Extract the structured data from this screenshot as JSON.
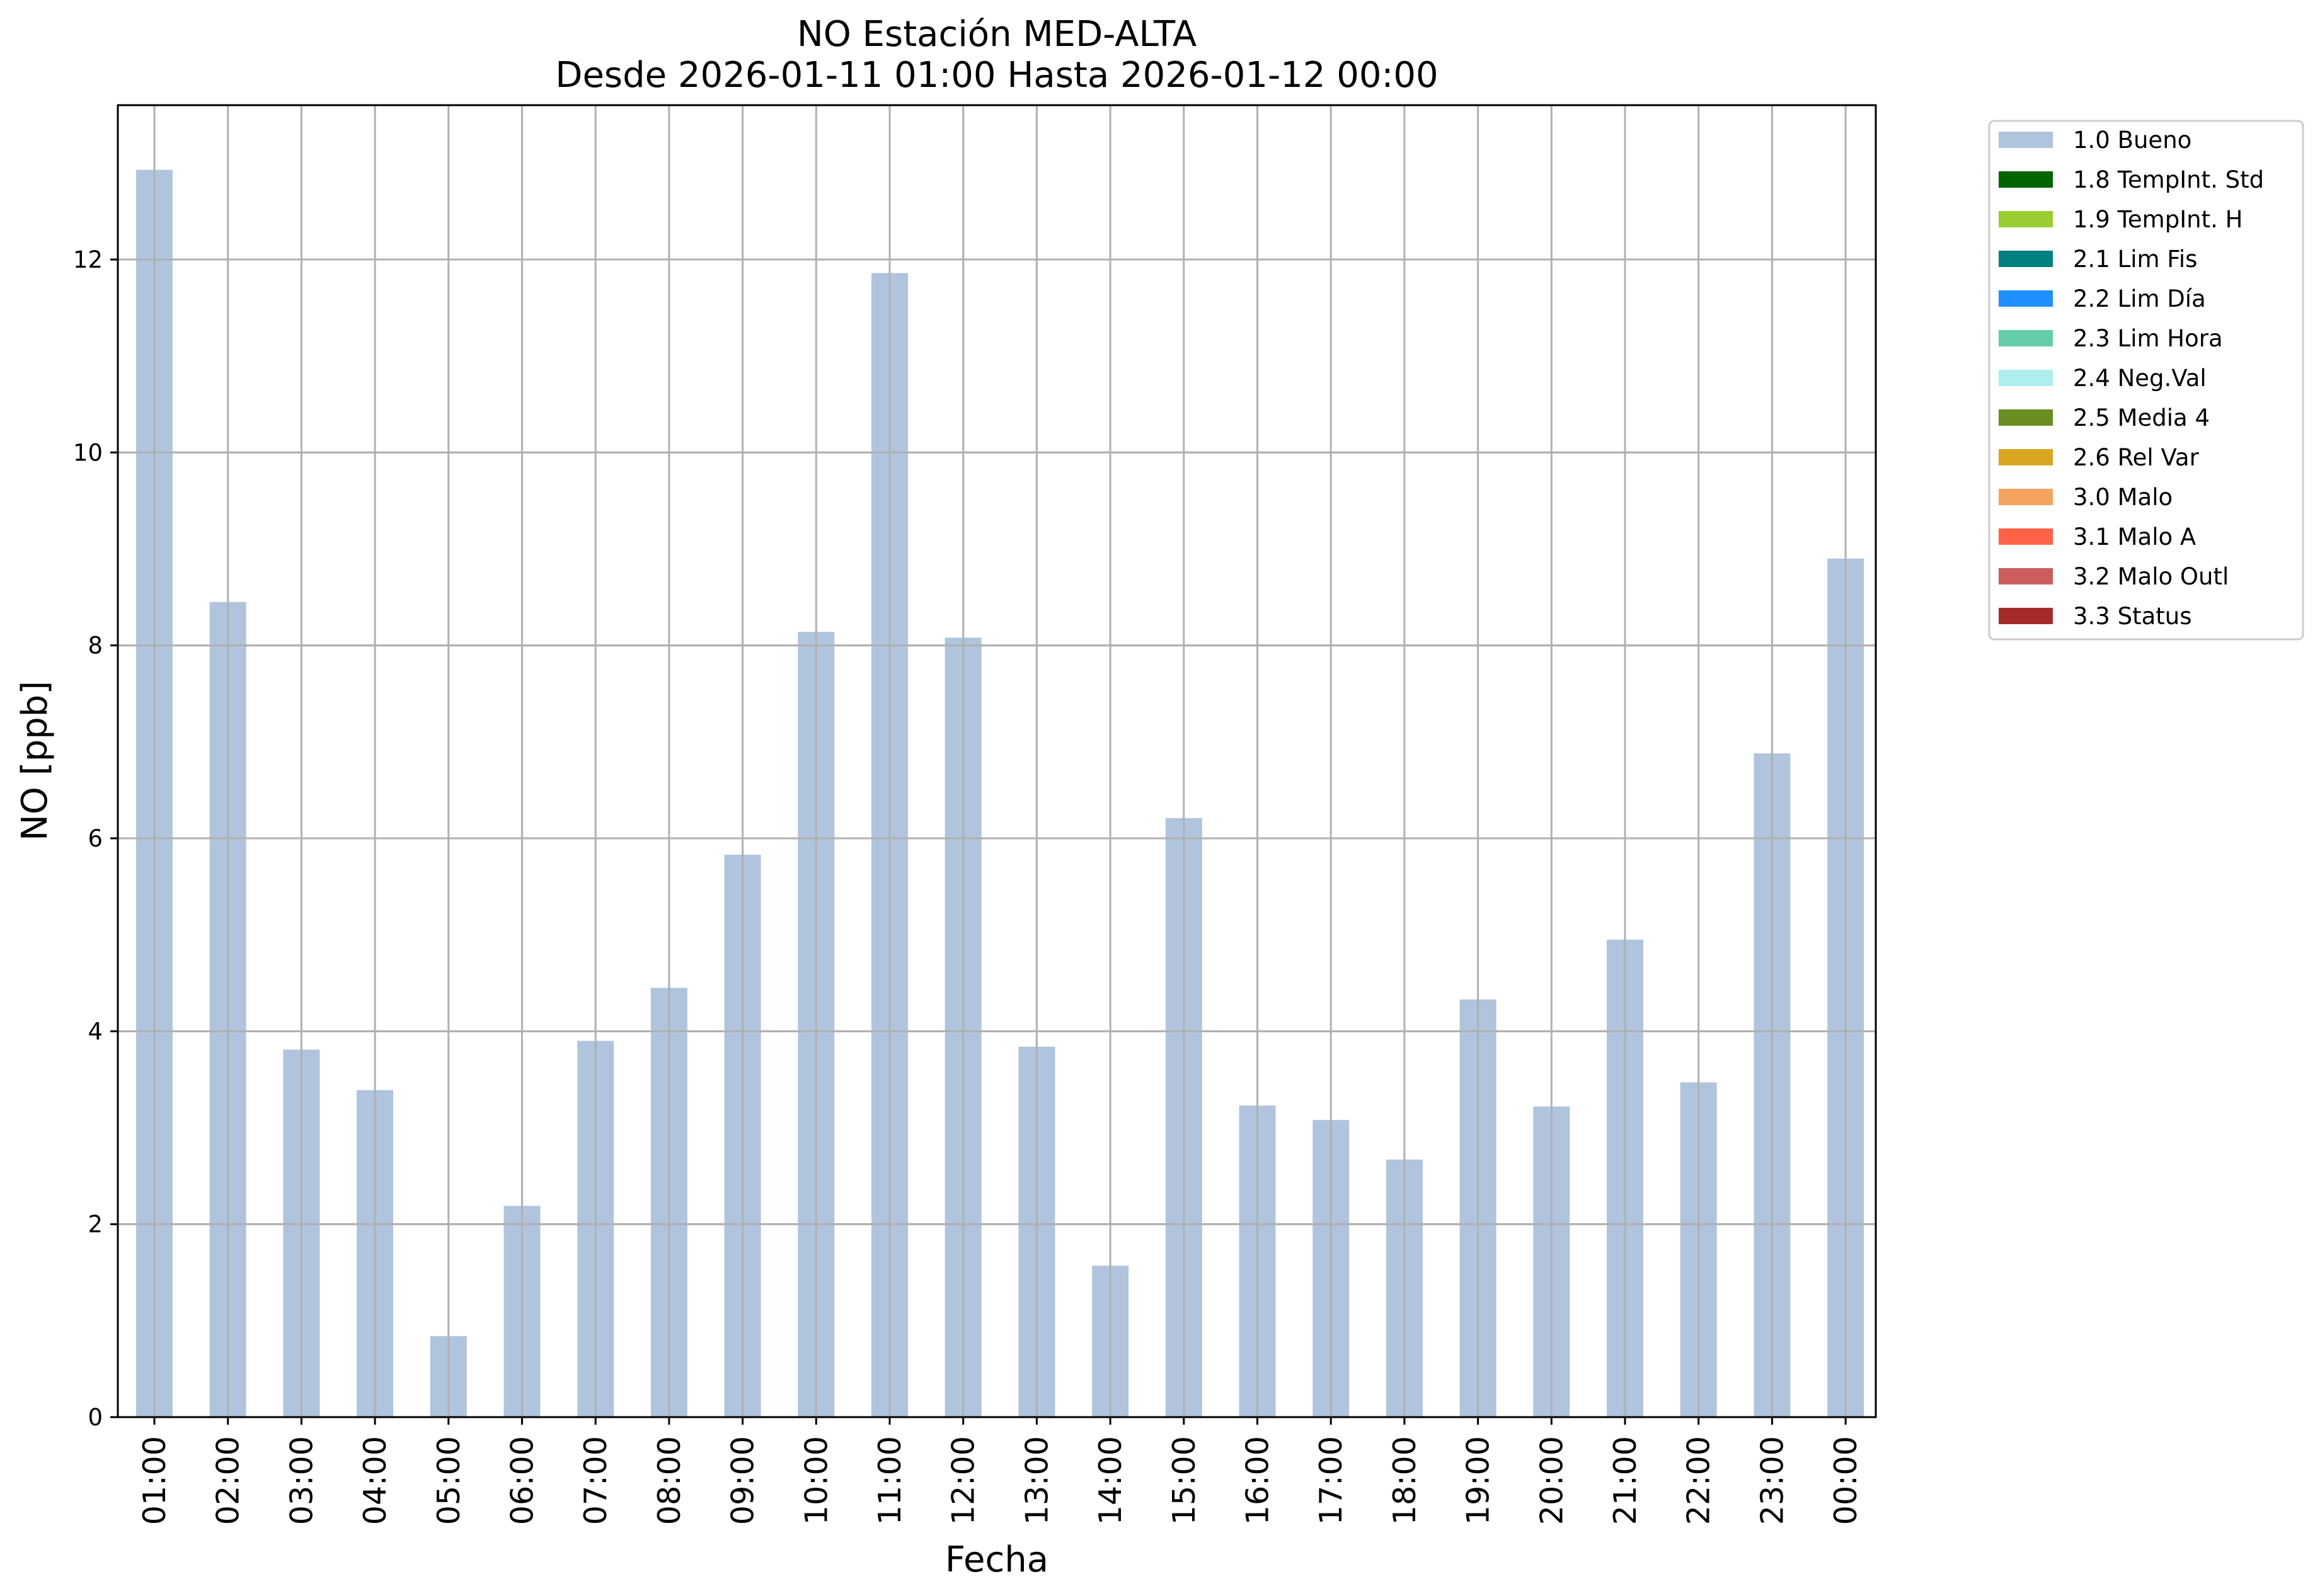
{
  "chart_data": {
    "type": "bar",
    "title": "NO Estación MED-ALTA",
    "subtitle": "Desde 2026-01-11 01:00 Hasta 2026-01-12 00:00",
    "xlabel": "Fecha",
    "ylabel": "NO [ppb]",
    "ylim": [
      0,
      13.6
    ],
    "yticks": [
      "0",
      "2",
      "4",
      "6",
      "8",
      "10",
      "12"
    ],
    "grid": true,
    "legend_position": "outside-top-right",
    "categories": [
      "01:00",
      "02:00",
      "03:00",
      "04:00",
      "05:00",
      "06:00",
      "07:00",
      "08:00",
      "09:00",
      "10:00",
      "11:00",
      "12:00",
      "13:00",
      "14:00",
      "15:00",
      "16:00",
      "17:00",
      "18:00",
      "19:00",
      "20:00",
      "21:00",
      "22:00",
      "23:00",
      "00:00"
    ],
    "series": [
      {
        "name": "1.0 Bueno",
        "color": "#b0c4de",
        "values": [
          12.93,
          8.45,
          3.81,
          3.39,
          0.84,
          2.19,
          3.9,
          4.45,
          5.83,
          8.14,
          11.86,
          8.08,
          3.84,
          1.57,
          6.21,
          3.23,
          3.08,
          2.67,
          4.33,
          3.22,
          4.95,
          3.47,
          6.88,
          8.9
        ]
      }
    ],
    "legend": [
      {
        "label": "1.0 Bueno",
        "color": "#b0c4de"
      },
      {
        "label": "1.8 TempInt. Std",
        "color": "#006400"
      },
      {
        "label": "1.9 TempInt. H",
        "color": "#9acd32"
      },
      {
        "label": "2.1 Lim Fis",
        "color": "#008080"
      },
      {
        "label": "2.2 Lim Día",
        "color": "#1e90ff"
      },
      {
        "label": "2.3 Lim Hora",
        "color": "#66cdaa"
      },
      {
        "label": "2.4 Neg.Val",
        "color": "#afeeee"
      },
      {
        "label": "2.5 Media 4",
        "color": "#6b8e23"
      },
      {
        "label": "2.6 Rel Var",
        "color": "#daa520"
      },
      {
        "label": "3.0 Malo",
        "color": "#f4a460"
      },
      {
        "label": "3.1 Malo A",
        "color": "#ff6347"
      },
      {
        "label": "3.2 Malo Outl",
        "color": "#cd5c5c"
      },
      {
        "label": "3.3 Status",
        "color": "#a52a2a"
      }
    ]
  }
}
